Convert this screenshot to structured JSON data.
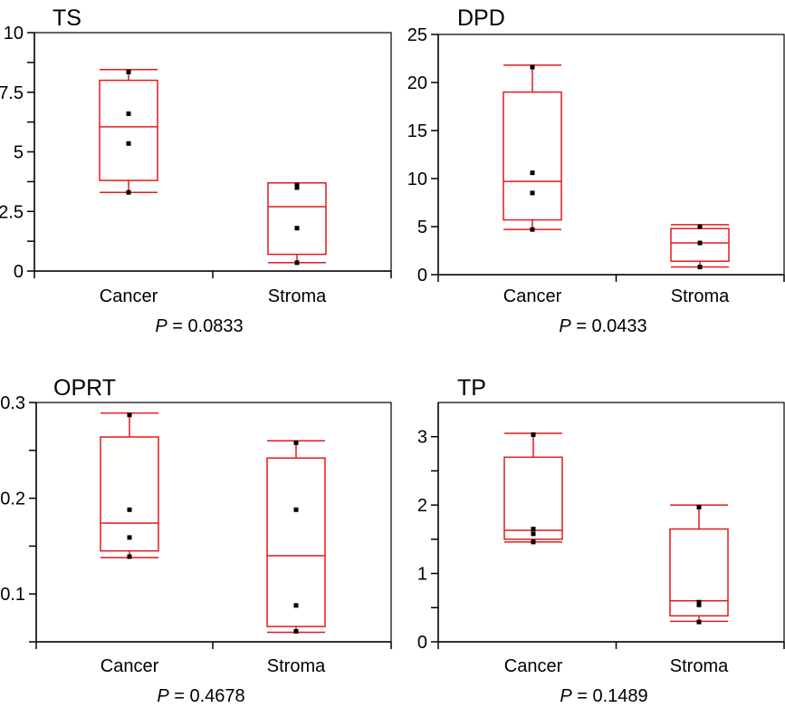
{
  "chart_data": [
    {
      "type": "box",
      "title": "TS",
      "categories": [
        "Cancer",
        "Stroma"
      ],
      "ylim": [
        0,
        10
      ],
      "ytick_labels": [
        "0",
        "2.5",
        "5",
        "7.5",
        "10"
      ],
      "ytick_values": [
        0,
        2.5,
        5,
        7.5,
        10
      ],
      "minor_tick_values": [
        1.25,
        3.75,
        6.25,
        8.75
      ],
      "boxes": [
        {
          "category": "Cancer",
          "whisker_low": 3.3,
          "q1": 3.8,
          "median": 6.05,
          "q3": 8.0,
          "whisker_high": 8.45
        },
        {
          "category": "Stroma",
          "whisker_low": 0.35,
          "q1": 0.7,
          "median": 2.7,
          "q3": 3.7,
          "whisker_high": 3.7
        }
      ],
      "points": [
        {
          "category": "Cancer",
          "values": [
            8.35,
            6.6,
            5.35,
            3.3
          ]
        },
        {
          "category": "Stroma",
          "values": [
            3.6,
            3.5,
            1.8,
            0.35
          ]
        }
      ],
      "p_prefix": "P",
      "p_value": "= 0.0833"
    },
    {
      "type": "box",
      "title": "DPD",
      "categories": [
        "Cancer",
        "Stroma"
      ],
      "ylim": [
        0,
        25
      ],
      "ytick_labels": [
        "0",
        "5",
        "10",
        "15",
        "20",
        "25"
      ],
      "ytick_values": [
        0,
        5,
        10,
        15,
        20,
        25
      ],
      "minor_tick_values": [],
      "boxes": [
        {
          "category": "Cancer",
          "whisker_low": 4.7,
          "q1": 5.7,
          "median": 9.7,
          "q3": 19.0,
          "whisker_high": 21.8
        },
        {
          "category": "Stroma",
          "whisker_low": 0.8,
          "q1": 1.4,
          "median": 3.3,
          "q3": 4.8,
          "whisker_high": 5.2
        }
      ],
      "points": [
        {
          "category": "Cancer",
          "values": [
            21.6,
            10.6,
            8.5,
            4.7
          ]
        },
        {
          "category": "Stroma",
          "values": [
            5.0,
            3.3,
            0.8
          ]
        }
      ],
      "p_prefix": "P",
      "p_value": "= 0.0433"
    },
    {
      "type": "box",
      "title": "OPRT",
      "categories": [
        "Cancer",
        "Stroma"
      ],
      "ylim": [
        0.05,
        0.3
      ],
      "ytick_labels": [
        "0.1",
        "0.2",
        "0.3"
      ],
      "ytick_values": [
        0.1,
        0.2,
        0.3
      ],
      "minor_tick_values": [
        0.05,
        0.15,
        0.25
      ],
      "boxes": [
        {
          "category": "Cancer",
          "whisker_low": 0.138,
          "q1": 0.145,
          "median": 0.174,
          "q3": 0.264,
          "whisker_high": 0.289
        },
        {
          "category": "Stroma",
          "whisker_low": 0.06,
          "q1": 0.066,
          "median": 0.14,
          "q3": 0.242,
          "whisker_high": 0.26
        }
      ],
      "points": [
        {
          "category": "Cancer",
          "values": [
            0.287,
            0.188,
            0.159,
            0.139
          ]
        },
        {
          "category": "Stroma",
          "values": [
            0.258,
            0.188,
            0.088,
            0.061
          ]
        }
      ],
      "p_prefix": "P",
      "p_value": "= 0.4678"
    },
    {
      "type": "box",
      "title": "TP",
      "categories": [
        "Cancer",
        "Stroma"
      ],
      "ylim": [
        0,
        3.5
      ],
      "ytick_labels": [
        "0",
        "1",
        "2",
        "3"
      ],
      "ytick_values": [
        0,
        1,
        2,
        3
      ],
      "minor_tick_values": [
        0.5,
        1.5,
        2.5
      ],
      "boxes": [
        {
          "category": "Cancer",
          "whisker_low": 1.46,
          "q1": 1.5,
          "median": 1.63,
          "q3": 2.7,
          "whisker_high": 3.05
        },
        {
          "category": "Stroma",
          "whisker_low": 0.3,
          "q1": 0.38,
          "median": 0.6,
          "q3": 1.65,
          "whisker_high": 2.0
        }
      ],
      "points": [
        {
          "category": "Cancer",
          "values": [
            3.03,
            1.65,
            1.58,
            1.46
          ]
        },
        {
          "category": "Stroma",
          "values": [
            1.97,
            0.58,
            0.54,
            0.29
          ]
        }
      ],
      "p_prefix": "P",
      "p_value": "= 0.1489"
    }
  ]
}
